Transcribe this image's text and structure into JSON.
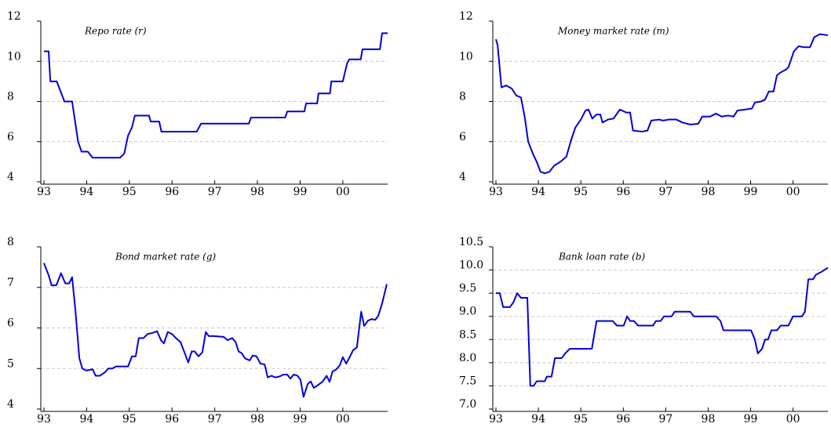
{
  "chart_data": [
    {
      "type": "line",
      "title": "Repo rate (r)",
      "color": "#0000dd",
      "grid": true,
      "xlim": [
        1993,
        2001.05
      ],
      "ylim": [
        4,
        12
      ],
      "xticks": [
        {
          "value": 1993,
          "label": "93"
        },
        {
          "value": 1994,
          "label": "94"
        },
        {
          "value": 1995,
          "label": "95"
        },
        {
          "value": 1996,
          "label": "96"
        },
        {
          "value": 1997,
          "label": "97"
        },
        {
          "value": 1998,
          "label": "98"
        },
        {
          "value": 1999,
          "label": "99"
        },
        {
          "value": 2000,
          "label": "00"
        }
      ],
      "yticks": [
        4,
        6,
        8,
        10,
        12
      ],
      "x": [
        1993.0,
        1993.11,
        1993.15,
        1993.3,
        1993.48,
        1993.66,
        1993.8,
        1993.88,
        1994.03,
        1994.14,
        1994.78,
        1994.88,
        1994.97,
        1995.06,
        1995.13,
        1995.46,
        1995.5,
        1995.7,
        1995.75,
        1996.58,
        1996.68,
        1997.8,
        1997.85,
        1998.65,
        1998.7,
        1999.1,
        1999.14,
        1999.4,
        1999.43,
        1999.7,
        1999.73,
        2000.0,
        2000.1,
        2000.15,
        2000.42,
        2000.46,
        2000.87,
        2000.92,
        2001.05
      ],
      "values": [
        10.5,
        10.5,
        9.0,
        9.0,
        8.0,
        8.0,
        6.0,
        5.5,
        5.5,
        5.2,
        5.2,
        5.4,
        6.3,
        6.7,
        7.3,
        7.3,
        7.0,
        7.0,
        6.5,
        6.5,
        6.9,
        6.9,
        7.2,
        7.2,
        7.5,
        7.5,
        7.9,
        7.9,
        8.4,
        8.4,
        9.0,
        9.0,
        9.9,
        10.1,
        10.1,
        10.6,
        10.6,
        11.4,
        11.4
      ]
    },
    {
      "type": "line",
      "title": "Money market rate (m)",
      "color": "#0000dd",
      "grid": true,
      "xlim": [
        1993,
        2000.82
      ],
      "ylim": [
        4,
        12
      ],
      "xticks": [
        {
          "value": 1993,
          "label": "93"
        },
        {
          "value": 1994,
          "label": "94"
        },
        {
          "value": 1995,
          "label": "95"
        },
        {
          "value": 1996,
          "label": "96"
        },
        {
          "value": 1997,
          "label": "97"
        },
        {
          "value": 1998,
          "label": "98"
        },
        {
          "value": 1999,
          "label": "99"
        },
        {
          "value": 2000,
          "label": "00"
        }
      ],
      "yticks": [
        4,
        6,
        8,
        10,
        12
      ],
      "x": [
        1993.0,
        1993.04,
        1993.13,
        1993.24,
        1993.37,
        1993.48,
        1993.59,
        1993.68,
        1993.76,
        1993.87,
        1993.96,
        1994.05,
        1994.15,
        1994.26,
        1994.37,
        1994.52,
        1994.66,
        1994.76,
        1994.87,
        1995.0,
        1995.11,
        1995.18,
        1995.27,
        1995.37,
        1995.46,
        1995.51,
        1995.64,
        1995.77,
        1995.92,
        1996.07,
        1996.16,
        1996.23,
        1996.44,
        1996.57,
        1996.66,
        1996.84,
        1996.94,
        1997.07,
        1997.25,
        1997.4,
        1997.58,
        1997.77,
        1997.86,
        1998.05,
        1998.18,
        1998.32,
        1998.47,
        1998.6,
        1998.69,
        1998.88,
        1999.03,
        1999.1,
        1999.25,
        1999.34,
        1999.43,
        1999.54,
        1999.62,
        1999.71,
        1999.84,
        1999.89,
        2000.02,
        2000.13,
        2000.26,
        2000.4,
        2000.5,
        2000.63,
        2000.82
      ],
      "values": [
        11.1,
        10.8,
        8.7,
        8.8,
        8.65,
        8.3,
        8.2,
        7.2,
        6.0,
        5.4,
        5.0,
        4.5,
        4.42,
        4.5,
        4.8,
        5.0,
        5.25,
        6.0,
        6.7,
        7.1,
        7.55,
        7.6,
        7.15,
        7.35,
        7.35,
        6.95,
        7.1,
        7.15,
        7.6,
        7.45,
        7.45,
        6.55,
        6.5,
        6.55,
        7.05,
        7.1,
        7.05,
        7.1,
        7.1,
        6.95,
        6.85,
        6.9,
        7.25,
        7.25,
        7.4,
        7.25,
        7.3,
        7.25,
        7.55,
        7.6,
        7.65,
        7.95,
        8.0,
        8.1,
        8.5,
        8.5,
        9.3,
        9.45,
        9.6,
        9.7,
        10.5,
        10.75,
        10.7,
        10.7,
        11.2,
        11.35,
        11.3
      ]
    },
    {
      "type": "line",
      "title": "Bond market rate (g)",
      "color": "#0000dd",
      "grid": true,
      "xlim": [
        1993,
        2001.05
      ],
      "ylim": [
        4,
        8
      ],
      "xticks": [
        {
          "value": 1993,
          "label": "93"
        },
        {
          "value": 1994,
          "label": "94"
        },
        {
          "value": 1995,
          "label": "95"
        },
        {
          "value": 1996,
          "label": "96"
        },
        {
          "value": 1997,
          "label": "97"
        },
        {
          "value": 1998,
          "label": "98"
        },
        {
          "value": 1999,
          "label": "99"
        },
        {
          "value": 2000,
          "label": "00"
        }
      ],
      "yticks": [
        4,
        5,
        6,
        7,
        8
      ],
      "x": [
        1993.0,
        1993.11,
        1993.18,
        1993.29,
        1993.4,
        1993.5,
        1993.59,
        1993.66,
        1993.74,
        1993.83,
        1993.9,
        1993.99,
        1994.14,
        1994.21,
        1994.31,
        1994.42,
        1994.51,
        1994.6,
        1994.69,
        1994.97,
        1995.06,
        1995.15,
        1995.22,
        1995.33,
        1995.43,
        1995.55,
        1995.65,
        1995.74,
        1995.81,
        1995.9,
        1996.0,
        1996.09,
        1996.2,
        1996.29,
        1996.38,
        1996.46,
        1996.53,
        1996.62,
        1996.71,
        1996.79,
        1996.86,
        1996.97,
        1997.21,
        1997.3,
        1997.41,
        1997.49,
        1997.56,
        1997.63,
        1997.71,
        1997.82,
        1997.89,
        1997.98,
        1998.07,
        1998.17,
        1998.24,
        1998.33,
        1998.42,
        1998.51,
        1998.61,
        1998.7,
        1998.77,
        1998.85,
        1998.94,
        1999.01,
        1999.08,
        1999.18,
        1999.25,
        1999.32,
        1999.43,
        1999.53,
        1999.62,
        1999.69,
        1999.76,
        1999.84,
        1999.93,
        2000.0,
        2000.08,
        2000.17,
        2000.24,
        2000.33,
        2000.43,
        2000.5,
        2000.59,
        2000.67,
        2000.76,
        2000.83,
        2000.92,
        2001.03
      ],
      "values": [
        7.6,
        7.3,
        7.05,
        7.05,
        7.35,
        7.1,
        7.1,
        7.25,
        6.4,
        5.25,
        5.0,
        4.95,
        4.98,
        4.82,
        4.82,
        4.9,
        5.0,
        5.0,
        5.05,
        5.05,
        5.3,
        5.3,
        5.75,
        5.75,
        5.85,
        5.88,
        5.92,
        5.7,
        5.62,
        5.9,
        5.85,
        5.75,
        5.65,
        5.4,
        5.15,
        5.42,
        5.42,
        5.3,
        5.4,
        5.9,
        5.8,
        5.8,
        5.78,
        5.7,
        5.75,
        5.65,
        5.42,
        5.38,
        5.25,
        5.2,
        5.32,
        5.3,
        5.12,
        5.1,
        4.78,
        4.82,
        4.78,
        4.8,
        4.85,
        4.85,
        4.75,
        4.85,
        4.82,
        4.72,
        4.3,
        4.62,
        4.68,
        4.52,
        4.6,
        4.68,
        4.82,
        4.67,
        4.93,
        4.97,
        5.08,
        5.28,
        5.12,
        5.3,
        5.45,
        5.52,
        6.4,
        6.05,
        6.18,
        6.22,
        6.2,
        6.3,
        6.6,
        7.08
      ]
    },
    {
      "type": "line",
      "title": "Bank loan rate (b)",
      "color": "#0000dd",
      "grid": true,
      "xlim": [
        1993,
        2000.82
      ],
      "ylim": [
        7,
        10.5
      ],
      "xticks": [
        {
          "value": 1993,
          "label": "93"
        },
        {
          "value": 1994,
          "label": "94"
        },
        {
          "value": 1995,
          "label": "95"
        },
        {
          "value": 1996,
          "label": "96"
        },
        {
          "value": 1997,
          "label": "97"
        },
        {
          "value": 1998,
          "label": "98"
        },
        {
          "value": 1999,
          "label": "99"
        },
        {
          "value": 2000,
          "label": "00"
        }
      ],
      "yticks": [
        {
          "value": 7,
          "label": "7.0"
        },
        7.5,
        {
          "value": 8,
          "label": "8.0"
        },
        8.5,
        {
          "value": 9,
          "label": "9.0"
        },
        9.5,
        {
          "value": 10,
          "label": "10.0"
        },
        10.5
      ],
      "x": [
        1993.0,
        1993.09,
        1993.17,
        1993.33,
        1993.41,
        1993.5,
        1993.59,
        1993.74,
        1993.81,
        1993.89,
        1993.96,
        1994.15,
        1994.2,
        1994.31,
        1994.39,
        1994.55,
        1994.63,
        1994.74,
        1995.26,
        1995.37,
        1995.75,
        1995.85,
        1996.01,
        1996.09,
        1996.16,
        1996.25,
        1996.35,
        1996.7,
        1996.77,
        1996.88,
        1996.96,
        1997.14,
        1997.21,
        1997.58,
        1997.66,
        1998.19,
        1998.29,
        1998.36,
        1999.01,
        1999.1,
        1999.17,
        1999.27,
        1999.34,
        1999.41,
        1999.49,
        1999.62,
        1999.71,
        1999.89,
        2000.0,
        2000.21,
        2000.28,
        2000.36,
        2000.47,
        2000.54,
        2000.65,
        2000.82
      ],
      "values": [
        9.5,
        9.5,
        9.2,
        9.2,
        9.3,
        9.5,
        9.4,
        9.4,
        7.5,
        7.5,
        7.6,
        7.6,
        7.7,
        7.7,
        8.1,
        8.1,
        8.2,
        8.3,
        8.3,
        8.9,
        8.9,
        8.8,
        8.8,
        9.0,
        8.9,
        8.9,
        8.8,
        8.8,
        8.9,
        8.9,
        9.0,
        9.0,
        9.1,
        9.1,
        9.0,
        9.0,
        8.9,
        8.7,
        8.7,
        8.5,
        8.2,
        8.3,
        8.5,
        8.5,
        8.7,
        8.7,
        8.8,
        8.8,
        9.0,
        9.0,
        9.1,
        9.8,
        9.8,
        9.9,
        9.95,
        10.05
      ]
    }
  ]
}
